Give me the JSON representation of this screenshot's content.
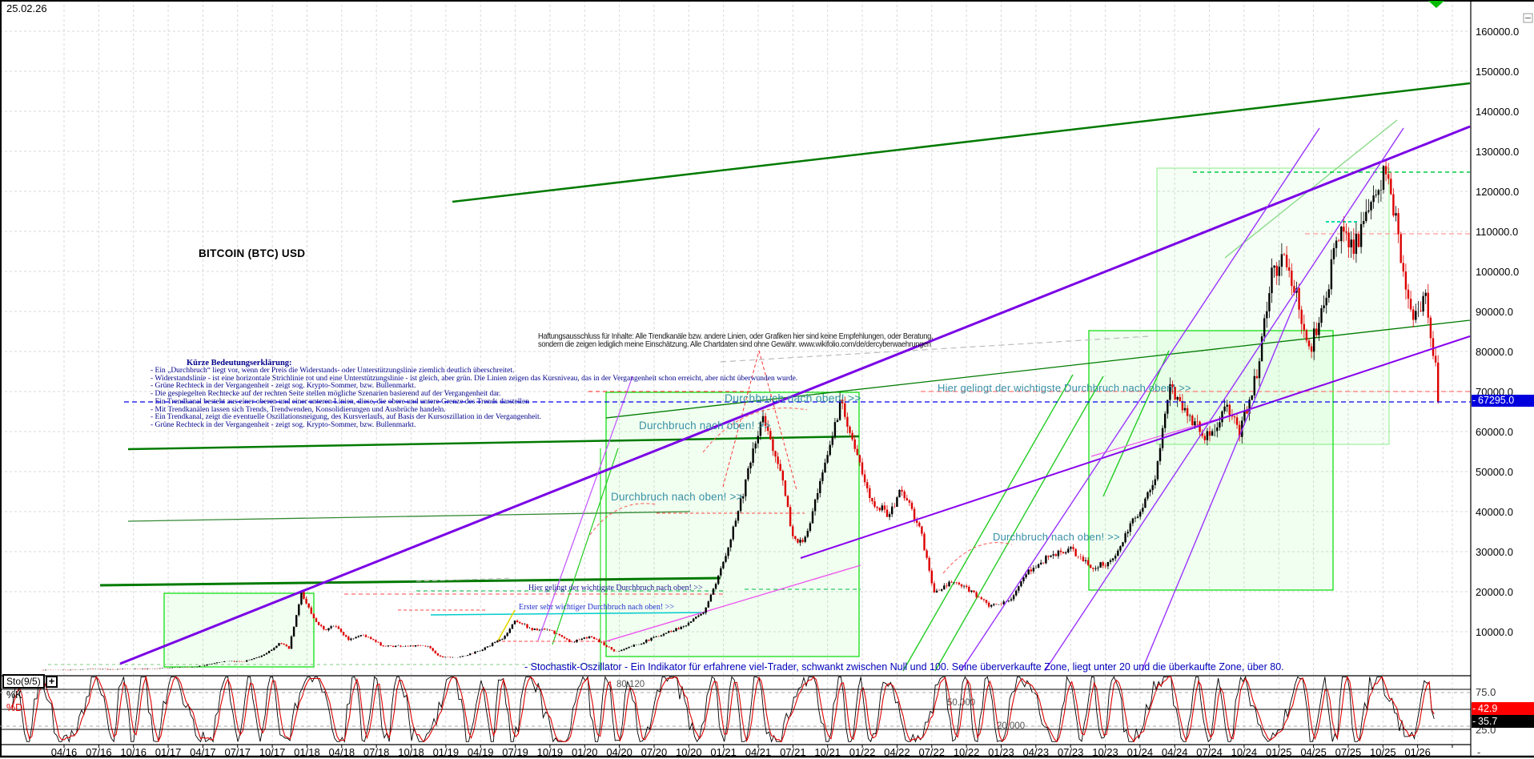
{
  "window": {
    "date_label": "25.02.26"
  },
  "chart": {
    "title": "BITCOIN (BTC) USD",
    "price_badge": "67295.0",
    "tick": "-",
    "y_axis": {
      "labels": [
        "160000.0",
        "150000.0",
        "140000.0",
        "130000.0",
        "120000.0",
        "110000.0",
        "100000.0",
        "90000.0",
        "80000.0",
        "70000.0",
        "60000.0",
        "50000.0",
        "40000.0",
        "30000.0",
        "20000.0",
        "10000.0"
      ]
    },
    "x_axis": {
      "labels": [
        "04/16",
        "07/16",
        "10/16",
        "01/17",
        "04/17",
        "07/17",
        "10/17",
        "01/18",
        "04/18",
        "07/18",
        "10/18",
        "01/19",
        "04/19",
        "07/19",
        "10/19",
        "01/20",
        "04/20",
        "07/20",
        "10/20",
        "01/21",
        "04/21",
        "07/21",
        "10/21",
        "01/22",
        "04/22",
        "07/22",
        "10/22",
        "01/23",
        "04/23",
        "07/23",
        "10/23",
        "01/24",
        "04/24",
        "07/24",
        "10/24",
        "01/25",
        "04/25",
        "07/25",
        "10/25",
        "01/26"
      ],
      "end_dash": "-"
    }
  },
  "annotations": {
    "breakout_a": "Durchbruch nach oben! >>",
    "breakout_b": "Durchbruch nach oben! >>",
    "breakout_c": "Durchbruch nach oben! >>",
    "breakout_e": "Durchbruch nach oben! >>",
    "major_breakout": "Hier gelingt der wichtigste Durchbruch nach oben! >>",
    "major_breakout_small": "Hier gelingt der wichtigste Durchbruch nach oben! >>",
    "first_breakout": "Erster sehr wichtiger Durchbruch nach oben! >>"
  },
  "explanation": {
    "heading": "Kürze Bedeutungserklärung:",
    "lines": [
      "- Ein „Durchbruch“ liegt vor, wenn der Preis die Widerstands- oder Unterstützungslinie ziemlich deutlich überschreitet.",
      "- Widerstandslinie - ist eine horizontale Strichlinie rot und eine Unterstützungslinie - ist gleich, aber grün. Die Linien zeigen das Kursniveau, das in der Vergangenheit schon erreicht, aber nicht überwunden wurde.",
      "- Grüne Rechteck in der Vergangenheit - zeigt sog. Krypto-Sommer, bzw. Bullenmarkt.",
      "- Die gespiegelten Rechtecke auf der rechten Seite stellen mögliche Szenarien basierend auf der Vergangenheit dar.",
      "- Ein Trendkanal besteht aus einer oberen und einer unteren Linien, diese, die obere und untere Grenze des Trends darstellen",
      "- Mit Trendkanälen lassen sich Trends, Trendwenden, Konsolidierungen und Ausbrüche handeln.",
      "- Ein Trendkanal, zeigt die eventuelle Oszillationsneigung, des Kursverlaufs, auf Basis der Kursoszillation in der Vergangenheit.",
      "- Grüne Rechteck in der Vergangenheit - zeigt sog. Krypto-Sommer, bzw. Bullenmarkt."
    ]
  },
  "disclaimer": {
    "line1": "Haftungsausschluss für Inhalte: Alle Trendkanäle bzw. andere Linien, oder Grafiken hier sind keine Empfehlungen, oder Beratung,",
    "line2": "sondern die zeigen lediglich meine Einschätzung. Alle Chartdaten sind ohne Gewähr. www.wikifolio.com/de/dercyberwaehrungen"
  },
  "notes": {
    "stochastic": "- Stochastik-Oszillator - Ein Indikator für erfahrene viel-Trader, schwankt zwischen Null und 100. Seine überverkaufte Zone, liegt unter 20 und die überkaufte Zone, über 80."
  },
  "oscillator": {
    "name": "Sto(9/5)",
    "plus": "+",
    "k_label": "%K",
    "d_label": "%D",
    "level_75": "75.0",
    "level_25": "25.0",
    "level_80": "80.120",
    "level_50": "50.000",
    "level_20": "20.000",
    "k_value": "35.7",
    "d_value": "42.9"
  },
  "chart_data": {
    "type": "candlestick",
    "symbol": "BITCOIN (BTC) USD",
    "x_unit": "decimal_year",
    "y_unit": "USD",
    "x_range": [
      2016.1,
      2026.16
    ],
    "y_ticks": [
      160000,
      150000,
      140000,
      130000,
      120000,
      110000,
      100000,
      90000,
      80000,
      70000,
      60000,
      50000,
      40000,
      30000,
      20000,
      10000
    ],
    "last_price": 67295.0,
    "last_price_color": "#0000dd",
    "grid": true,
    "legend_position": "none",
    "price_keypoints": [
      [
        2016.1,
        430
      ],
      [
        2016.3,
        420
      ],
      [
        2016.45,
        660
      ],
      [
        2016.6,
        590
      ],
      [
        2016.9,
        740
      ],
      [
        2017.0,
        970
      ],
      [
        2017.2,
        1190
      ],
      [
        2017.38,
        2500
      ],
      [
        2017.55,
        2600
      ],
      [
        2017.7,
        4300
      ],
      [
        2017.8,
        7200
      ],
      [
        2017.87,
        5900
      ],
      [
        2017.96,
        19500
      ],
      [
        2018.04,
        14000
      ],
      [
        2018.12,
        10300
      ],
      [
        2018.2,
        11500
      ],
      [
        2018.3,
        8000
      ],
      [
        2018.4,
        9300
      ],
      [
        2018.55,
        6400
      ],
      [
        2018.75,
        6450
      ],
      [
        2018.88,
        6300
      ],
      [
        2018.95,
        3800
      ],
      [
        2019.1,
        3600
      ],
      [
        2019.25,
        5300
      ],
      [
        2019.42,
        8600
      ],
      [
        2019.5,
        12900
      ],
      [
        2019.62,
        10600
      ],
      [
        2019.75,
        10300
      ],
      [
        2019.9,
        7400
      ],
      [
        2020.05,
        8800
      ],
      [
        2020.22,
        5000
      ],
      [
        2020.4,
        7100
      ],
      [
        2020.55,
        9300
      ],
      [
        2020.7,
        11200
      ],
      [
        2020.85,
        14500
      ],
      [
        2020.95,
        22000
      ],
      [
        2021.05,
        33500
      ],
      [
        2021.15,
        46000
      ],
      [
        2021.28,
        63500
      ],
      [
        2021.4,
        52000
      ],
      [
        2021.5,
        33500
      ],
      [
        2021.58,
        32000
      ],
      [
        2021.7,
        47000
      ],
      [
        2021.85,
        68500
      ],
      [
        2021.95,
        55000
      ],
      [
        2022.05,
        43500
      ],
      [
        2022.2,
        39000
      ],
      [
        2022.28,
        46000
      ],
      [
        2022.42,
        35000
      ],
      [
        2022.52,
        19500
      ],
      [
        2022.65,
        22500
      ],
      [
        2022.8,
        19800
      ],
      [
        2022.92,
        16200
      ],
      [
        2023.05,
        17500
      ],
      [
        2023.2,
        25000
      ],
      [
        2023.35,
        29000
      ],
      [
        2023.5,
        30500
      ],
      [
        2023.65,
        26000
      ],
      [
        2023.8,
        27500
      ],
      [
        2023.95,
        37500
      ],
      [
        2024.1,
        47000
      ],
      [
        2024.22,
        71500
      ],
      [
        2024.35,
        64000
      ],
      [
        2024.5,
        58000
      ],
      [
        2024.62,
        66000
      ],
      [
        2024.72,
        59500
      ],
      [
        2024.85,
        76000
      ],
      [
        2024.95,
        99000
      ],
      [
        2025.03,
        103500
      ],
      [
        2025.12,
        95000
      ],
      [
        2025.22,
        79500
      ],
      [
        2025.35,
        96500
      ],
      [
        2025.45,
        111000
      ],
      [
        2025.55,
        106500
      ],
      [
        2025.65,
        114000
      ],
      [
        2025.77,
        125800
      ],
      [
        2025.85,
        110500
      ],
      [
        2025.93,
        91000
      ],
      [
        2026.0,
        88500
      ],
      [
        2026.05,
        95000
      ],
      [
        2026.09,
        86000
      ],
      [
        2026.13,
        76000
      ],
      [
        2026.155,
        67295
      ]
    ],
    "up_color": "#000000",
    "down_color": "#dd0000",
    "oscillator": {
      "type": "stochastic",
      "label": "Sto(9/5)",
      "range": [
        0,
        100
      ],
      "solid_levels": [
        80,
        50,
        20
      ],
      "dashed_levels": [
        75,
        25
      ],
      "last_k": 35.7,
      "last_d": 42.9,
      "k_color": "#000000",
      "d_color": "#e00000"
    }
  }
}
